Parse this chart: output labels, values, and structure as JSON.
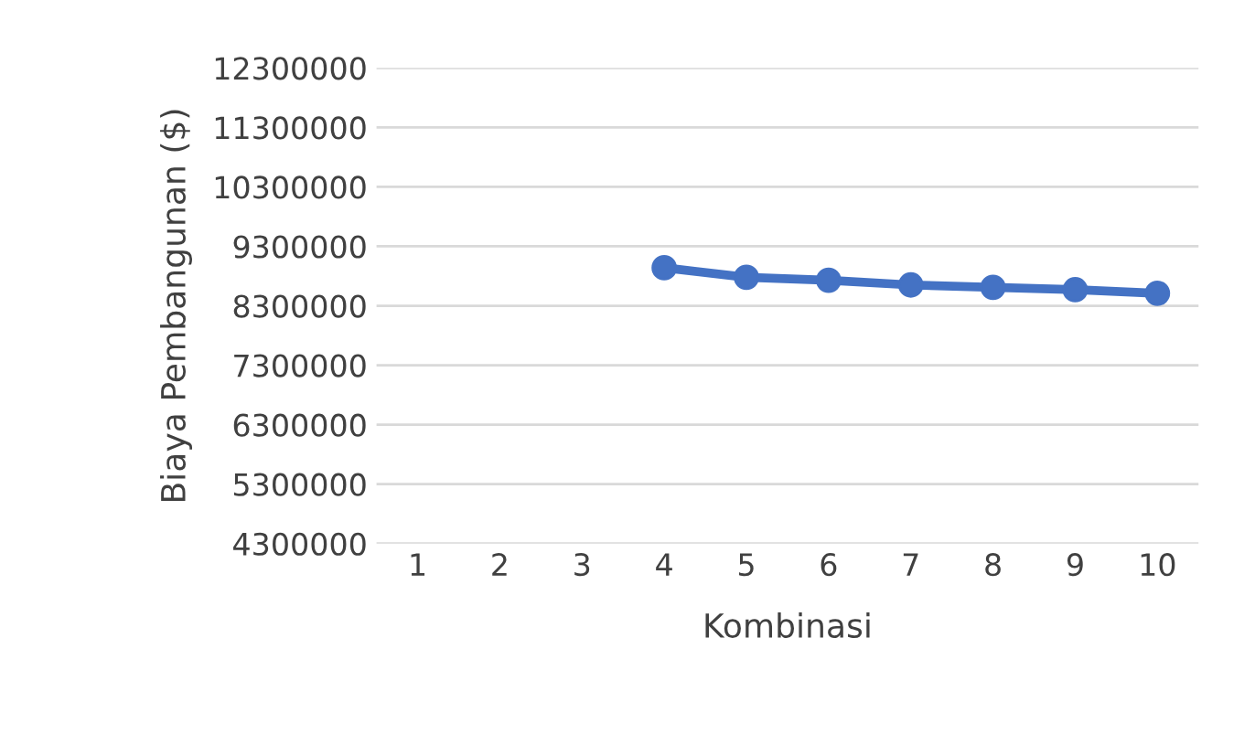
{
  "chart_data": {
    "type": "line",
    "xlabel": "Kombinasi",
    "ylabel": "Biaya Pembangunan ($)",
    "categories": [
      "1",
      "2",
      "3",
      "4",
      "5",
      "6",
      "7",
      "8",
      "9",
      "10"
    ],
    "series": [
      {
        "color": "#4472c4",
        "values": [
          null,
          null,
          null,
          8940000,
          8780000,
          8730000,
          8650000,
          8610000,
          8570000,
          8510000
        ]
      }
    ],
    "ylim": [
      4300000,
      12300000
    ],
    "yticks": [
      4300000,
      5300000,
      6300000,
      7300000,
      8300000,
      9300000,
      10300000,
      11300000,
      12300000
    ],
    "grid": "y",
    "marker": "circle",
    "legend": false
  }
}
